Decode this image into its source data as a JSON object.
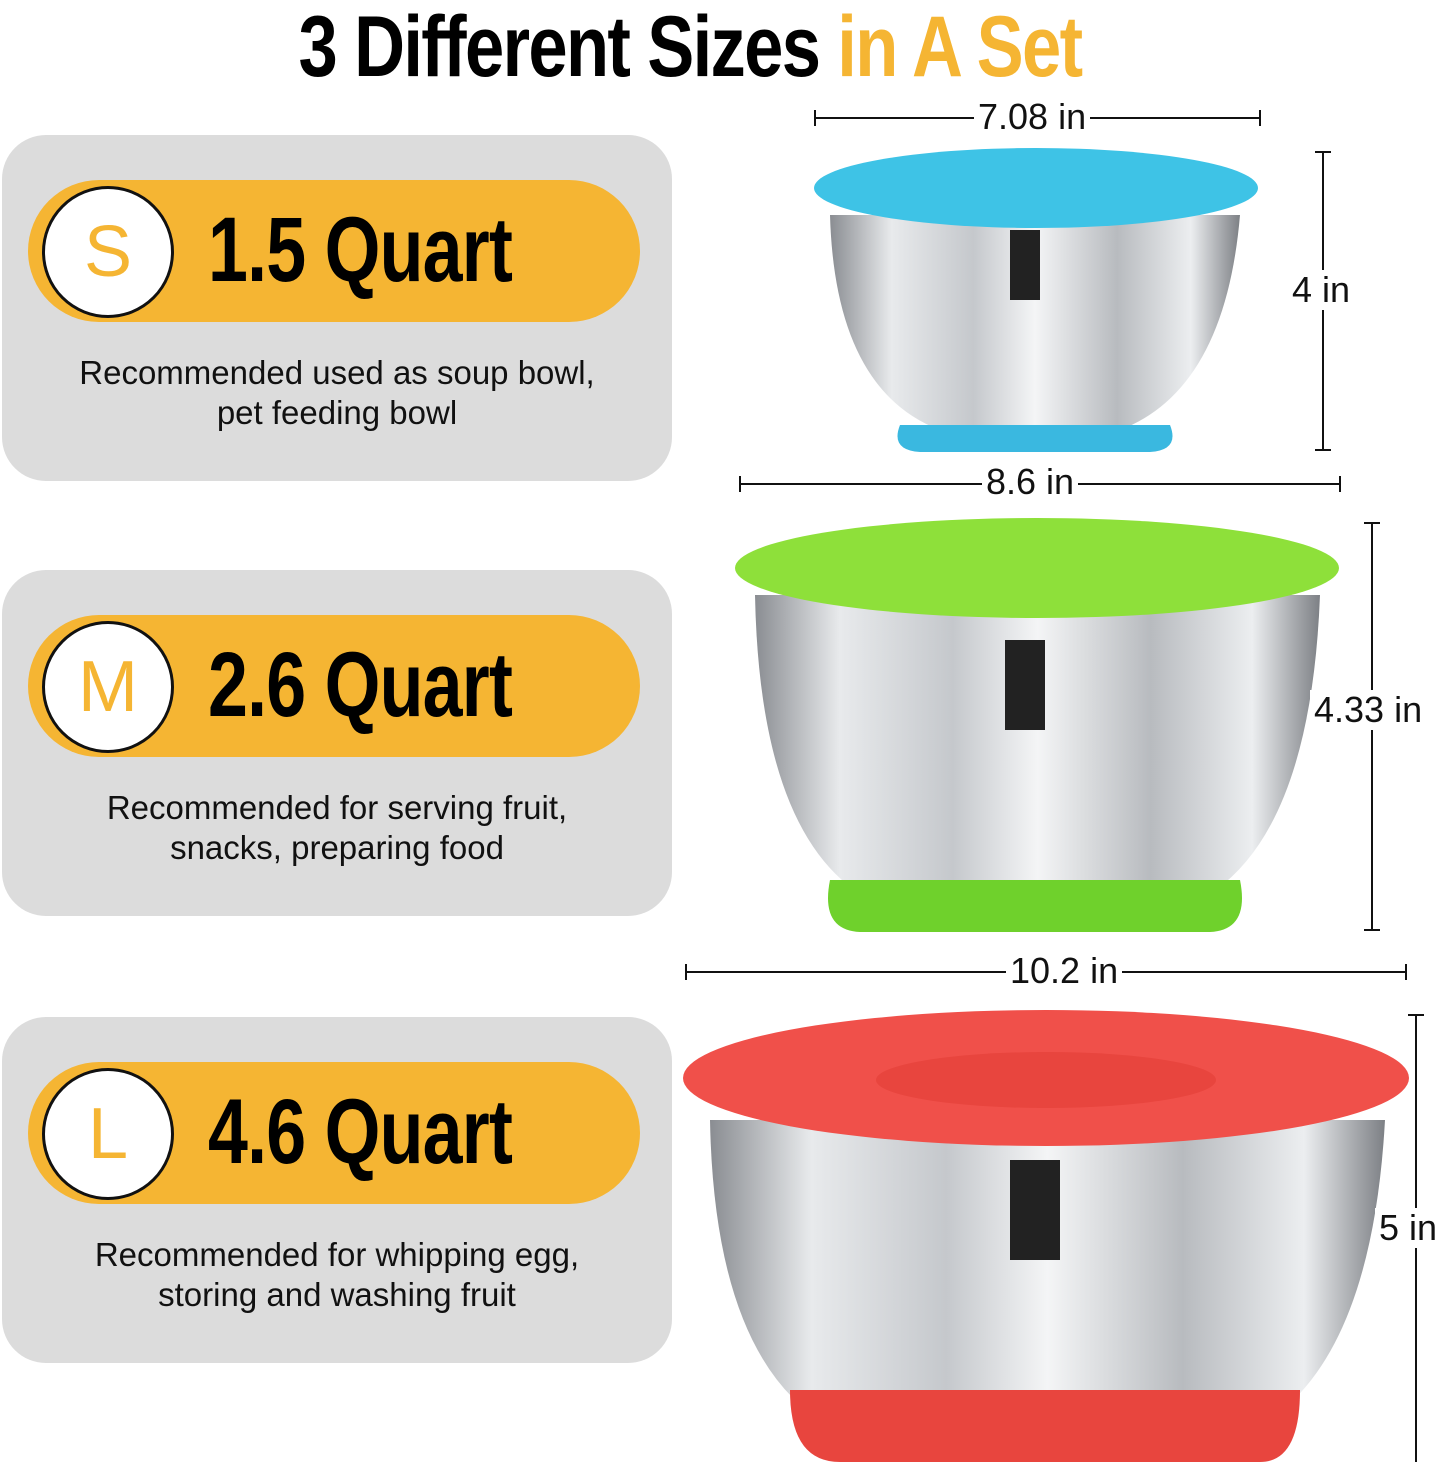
{
  "title": {
    "part1": "3 Different Sizes ",
    "part2": "in A Set"
  },
  "sizes": [
    {
      "letter": "S",
      "capacity": "1.5 Quart",
      "desc1": "Recommended used as soup bowl,",
      "desc2": "pet feeding bowl",
      "lid_color": "#3ec3e6",
      "base_color": "#3ab8e0",
      "width": "7.08 in",
      "height": "4 in"
    },
    {
      "letter": "M",
      "capacity": "2.6 Quart",
      "desc1": "Recommended for serving fruit,",
      "desc2": "snacks, preparing food",
      "lid_color": "#8ee03a",
      "base_color": "#6fd12c",
      "width": "8.6 in",
      "height": "4.33 in"
    },
    {
      "letter": "L",
      "capacity": "4.6 Quart",
      "desc1": "Recommended for whipping egg,",
      "desc2": "storing and washing fruit",
      "lid_color": "#f0504a",
      "base_color": "#e8453e",
      "width": "10.2 in",
      "height": "5 in"
    }
  ],
  "accent": "#f5b533"
}
